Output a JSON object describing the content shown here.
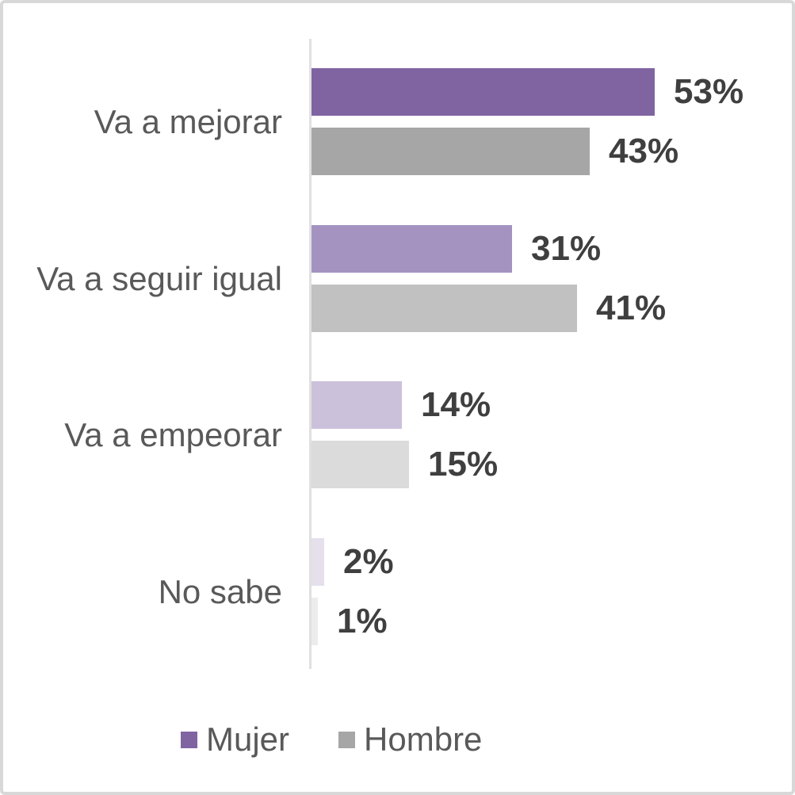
{
  "chart_data": {
    "type": "bar",
    "orientation": "horizontal",
    "title": "",
    "xlabel": "",
    "ylabel": "",
    "categories": [
      "Va a mejorar",
      "Va a seguir igual",
      "Va a empeorar",
      "No sabe"
    ],
    "series": [
      {
        "name": "Mujer",
        "values": [
          53,
          31,
          14,
          2
        ],
        "labels": [
          "53%",
          "31%",
          "14%",
          "2%"
        ],
        "colors": [
          "#8064A2",
          "#A493C1",
          "#CCC1DA",
          "#E5E0EC"
        ]
      },
      {
        "name": "Hombre",
        "values": [
          43,
          41,
          15,
          1
        ],
        "labels": [
          "43%",
          "41%",
          "15%",
          "1%"
        ],
        "colors": [
          "#A6A6A6",
          "#C1C1C1",
          "#DBDBDB",
          "#ECECEC"
        ]
      }
    ],
    "value_unit": "%",
    "xlim": [
      0,
      60
    ],
    "grid": false,
    "axis_line_color": "#E0E0E0",
    "data_label_color": "#3F3F3F",
    "category_label_color": "#595959",
    "legend": {
      "position": "bottom",
      "items": [
        {
          "label": "Mujer",
          "color": "#8064A2"
        },
        {
          "label": "Hombre",
          "color": "#A6A6A6"
        }
      ]
    }
  },
  "frame": {
    "border_color": "#D8D8D8",
    "background": "#FFFFFF"
  }
}
